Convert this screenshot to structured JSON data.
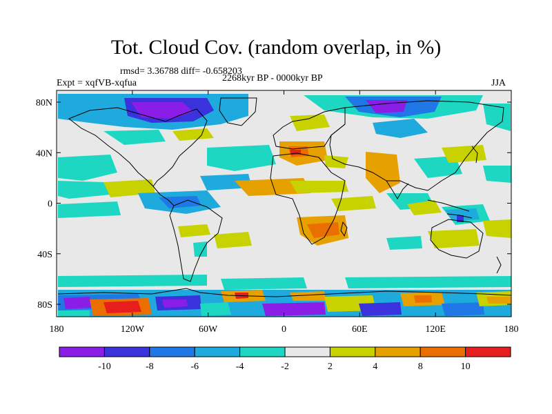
{
  "title": "Tot. Cloud Cov. (random overlap, in %)",
  "stats": "rmsd= 3.36788 diff= -0.658203",
  "period": "2268kyr BP - 0000kyr BP",
  "experiment": "Expt = xqfVB-xqfua",
  "season": "JJA",
  "lat_labels": [
    "80N",
    "40N",
    "0",
    "40S",
    "80S"
  ],
  "lon_labels": [
    "180",
    "120W",
    "60W",
    "0",
    "60E",
    "120E",
    "180"
  ],
  "colorbar": {
    "labels": [
      "-10",
      "-8",
      "-6",
      "-4",
      "-2",
      "2",
      "4",
      "8",
      "10"
    ],
    "colors": [
      "#8a1ee6",
      "#3a32dc",
      "#1f78e6",
      "#1eaadc",
      "#1ed7c3",
      "#e8e8e8",
      "#c8d200",
      "#e6a000",
      "#eb6e00",
      "#e61e1e"
    ]
  },
  "colors": {
    "ocean_background": "#e8e8e8",
    "coastline": "#000000"
  }
}
